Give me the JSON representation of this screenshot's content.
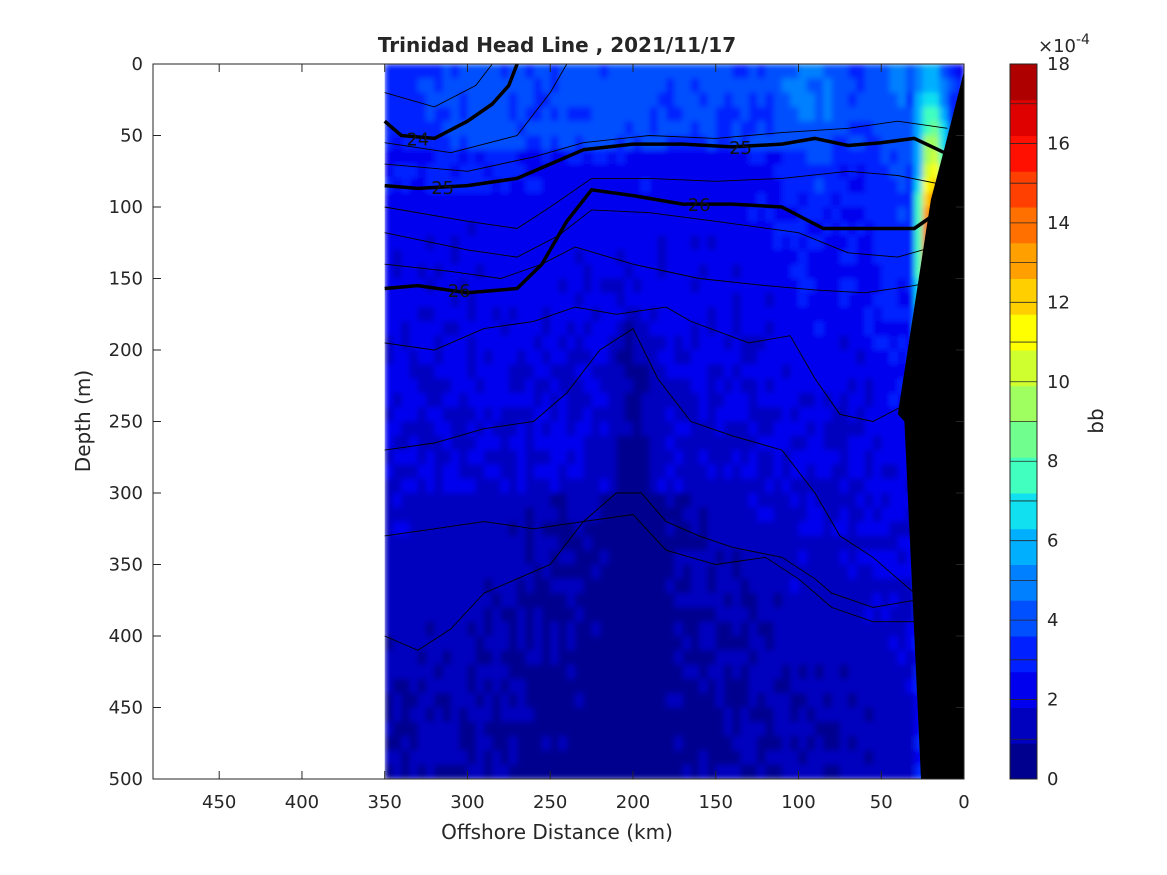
{
  "chart_data": {
    "type": "heatmap",
    "title": "Trinidad Head Line , 2021/11/17",
    "xlabel": "Offshore Distance (km)",
    "ylabel": "Depth (m)",
    "xlim": [
      490,
      0
    ],
    "ylim": [
      0,
      500
    ],
    "x_reversed": true,
    "y_reversed": true,
    "x_ticks": [
      450,
      400,
      350,
      300,
      250,
      200,
      150,
      100,
      50,
      0
    ],
    "y_ticks": [
      0,
      50,
      100,
      150,
      200,
      250,
      300,
      350,
      400,
      450,
      500
    ],
    "data_extent_x": [
      350,
      0
    ],
    "colorbar": {
      "label": "bb",
      "exponent_label": "×10",
      "exponent_power": "-4",
      "range": [
        0,
        18
      ],
      "ticks": [
        0,
        2,
        4,
        6,
        8,
        10,
        12,
        14,
        16,
        18
      ],
      "levels": [
        0,
        1,
        2,
        3,
        4,
        5,
        6,
        7,
        8,
        9,
        10,
        11,
        12,
        13,
        14,
        15,
        16,
        17,
        18
      ],
      "colormap": [
        "#00008f",
        "#0000bf",
        "#0000ef",
        "#0020ff",
        "#0050ff",
        "#0080ff",
        "#00b0ff",
        "#10e0ef",
        "#40ffbf",
        "#70ff8f",
        "#a0ff60",
        "#d0ff30",
        "#ffff00",
        "#ffcf00",
        "#ff9f00",
        "#ff7000",
        "#ff4000",
        "#ff1000",
        "#df0000",
        "#af0000"
      ]
    },
    "density_contours": [
      {
        "label": "24",
        "points": [
          [
            350,
            40
          ],
          [
            340,
            50
          ],
          [
            320,
            52
          ],
          [
            300,
            40
          ],
          [
            285,
            28
          ],
          [
            275,
            15
          ],
          [
            270,
            0
          ]
        ]
      },
      {
        "label": "25",
        "points": [
          [
            350,
            85
          ],
          [
            330,
            87
          ],
          [
            300,
            85
          ],
          [
            270,
            80
          ],
          [
            250,
            70
          ],
          [
            230,
            60
          ],
          [
            200,
            56
          ],
          [
            170,
            56
          ],
          [
            140,
            58
          ],
          [
            110,
            56
          ],
          [
            90,
            52
          ],
          [
            70,
            57
          ],
          [
            50,
            55
          ],
          [
            30,
            52
          ],
          [
            10,
            63
          ]
        ]
      },
      {
        "label": "26",
        "points": [
          [
            350,
            157
          ],
          [
            330,
            155
          ],
          [
            300,
            160
          ],
          [
            270,
            157
          ],
          [
            255,
            140
          ],
          [
            240,
            110
          ],
          [
            225,
            88
          ],
          [
            200,
            92
          ],
          [
            170,
            98
          ],
          [
            140,
            98
          ],
          [
            110,
            100
          ],
          [
            85,
            115
          ],
          [
            50,
            115
          ],
          [
            30,
            115
          ],
          [
            20,
            107
          ],
          [
            10,
            104
          ]
        ]
      }
    ],
    "annotations": [
      "24",
      "25",
      "25",
      "26",
      "26"
    ]
  }
}
